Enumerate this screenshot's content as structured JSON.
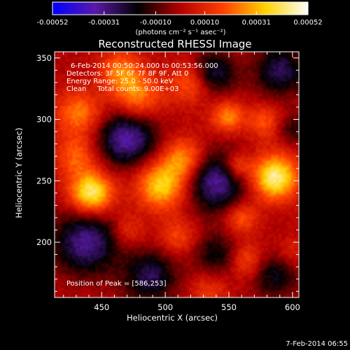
{
  "colorbar": {
    "ticks": [
      -0.00052,
      -0.00031,
      -0.0001,
      0.0001,
      0.00031,
      0.00052
    ],
    "tick_labels": [
      "-0.00052",
      "-0.00031",
      "-0.00010",
      "0.00010",
      "0.00031",
      "0.00052"
    ],
    "unit_text": "(photons cm⁻² s⁻¹ asec⁻²)",
    "range": [
      -0.00052,
      0.00052
    ]
  },
  "overlay": {
    "line1": "6-Feb-2014 00:50:24.000 to 00:53:56.000",
    "line2": "Detectors: 3F 5F 6F 7F 8F 9F, Att 0",
    "line3": "Energy Range: 25.0 - 50.0 keV",
    "line4": "Clean     Total counts: 9.00E+03",
    "peak": "Position of Peak = [586,253]"
  },
  "footer": {
    "timestamp": "7-Feb-2014 06:55"
  },
  "chart_data": {
    "type": "heatmap",
    "title": "Reconstructed RHESSI Image",
    "xlabel": "Heliocentric X (arcsec)",
    "ylabel": "Heliocentric Y (arcsec)",
    "xlim": [
      413,
      605
    ],
    "ylim": [
      155,
      355
    ],
    "x_ticks": [
      450,
      500,
      550,
      600
    ],
    "y_ticks": [
      200,
      250,
      300,
      350
    ],
    "peak_position": [
      586,
      253
    ],
    "colormap": [
      "#0000ff",
      "#5a1aa8",
      "#000000",
      "#b30000",
      "#ff4000",
      "#ffd200",
      "#ffffff"
    ],
    "sources": [
      {
        "x": 586,
        "y": 253,
        "amplitude": 0.00046,
        "sigma": 13
      },
      {
        "x": 442,
        "y": 240,
        "amplitude": 0.00044,
        "sigma": 12
      },
      {
        "x": 497,
        "y": 246,
        "amplitude": 0.00036,
        "sigma": 14
      },
      {
        "x": 515,
        "y": 268,
        "amplitude": 0.00028,
        "sigma": 12
      },
      {
        "x": 432,
        "y": 305,
        "amplitude": 0.00024,
        "sigma": 13
      },
      {
        "x": 478,
        "y": 318,
        "amplitude": 0.00025,
        "sigma": 14
      },
      {
        "x": 465,
        "y": 340,
        "amplitude": 0.00022,
        "sigma": 12
      },
      {
        "x": 520,
        "y": 330,
        "amplitude": 0.0002,
        "sigma": 12
      },
      {
        "x": 549,
        "y": 302,
        "amplitude": 0.00026,
        "sigma": 9
      },
      {
        "x": 556,
        "y": 262,
        "amplitude": 0.00022,
        "sigma": 8
      },
      {
        "x": 560,
        "y": 220,
        "amplitude": 0.0002,
        "sigma": 9
      },
      {
        "x": 565,
        "y": 185,
        "amplitude": 0.00019,
        "sigma": 10
      },
      {
        "x": 578,
        "y": 298,
        "amplitude": 0.00018,
        "sigma": 10
      },
      {
        "x": 430,
        "y": 270,
        "amplitude": 0.0002,
        "sigma": 12
      },
      {
        "x": 510,
        "y": 205,
        "amplitude": 0.00016,
        "sigma": 10
      },
      {
        "x": 470,
        "y": 210,
        "amplitude": 0.00014,
        "sigma": 9
      },
      {
        "x": 598,
        "y": 190,
        "amplitude": 0.00012,
        "sigma": 10
      },
      {
        "x": 534,
        "y": 160,
        "amplitude": 0.00014,
        "sigma": 10
      },
      {
        "x": 470,
        "y": 285,
        "amplitude": -0.00036,
        "sigma": 16
      },
      {
        "x": 540,
        "y": 250,
        "amplitude": -0.00034,
        "sigma": 17
      },
      {
        "x": 438,
        "y": 200,
        "amplitude": -0.00032,
        "sigma": 18
      },
      {
        "x": 488,
        "y": 172,
        "amplitude": -0.00026,
        "sigma": 14
      },
      {
        "x": 590,
        "y": 340,
        "amplitude": -0.00026,
        "sigma": 14
      },
      {
        "x": 586,
        "y": 175,
        "amplitude": -0.00022,
        "sigma": 13
      },
      {
        "x": 538,
        "y": 338,
        "amplitude": -0.00026,
        "sigma": 12
      },
      {
        "x": 540,
        "y": 190,
        "amplitude": -0.00018,
        "sigma": 12
      },
      {
        "x": 600,
        "y": 292,
        "amplitude": -0.00014,
        "sigma": 9
      }
    ]
  }
}
